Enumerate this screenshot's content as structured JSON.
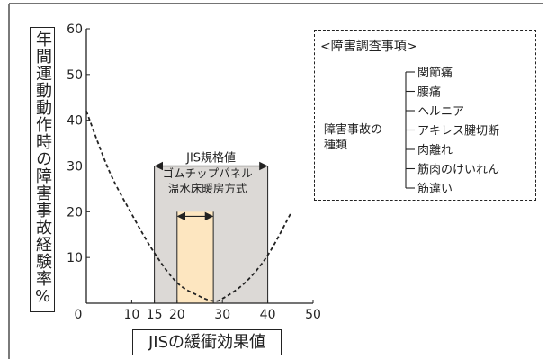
{
  "chart_data": {
    "type": "line",
    "xlabel": "JISの緩衝効果値",
    "ylabel": "年間運動動作時の障害事故経験率%",
    "xlim": [
      0,
      50
    ],
    "ylim": [
      0,
      60
    ],
    "x_ticks": [
      "0",
      "10",
      "15",
      "20",
      "30",
      "40",
      "50"
    ],
    "y_ticks": [
      "10",
      "20",
      "30",
      "40",
      "50",
      "60"
    ],
    "grid": false,
    "series": [
      {
        "style": "dashed",
        "x": [
          0,
          5,
          10,
          15,
          20,
          25,
          28,
          30,
          35,
          40,
          45
        ],
        "y": [
          42,
          29,
          19.5,
          11,
          4.5,
          1.5,
          0.5,
          1,
          4.5,
          10.5,
          19.5
        ]
      }
    ],
    "regions": [
      {
        "label": "JIS規格値",
        "x_range": [
          15,
          40
        ],
        "y_top": 30,
        "color": "#dcd9d6"
      },
      {
        "label": "ゴムチップパネル\n温水床暖房方式",
        "x_range": [
          20,
          28
        ],
        "y_top": 20,
        "color": "#fde6c0"
      }
    ]
  },
  "legend": {
    "title": "<障害調査事項>",
    "root": "障害事故の\n種類",
    "items": [
      "関節痛",
      "腰痛",
      "ヘルニア",
      "アキレス腱切断",
      "肉離れ",
      "筋肉のけいれん",
      "筋違い"
    ]
  },
  "colors": {
    "jis_region": "#dcd9d6",
    "product_region": "#fde6c0",
    "line": "#222222"
  }
}
